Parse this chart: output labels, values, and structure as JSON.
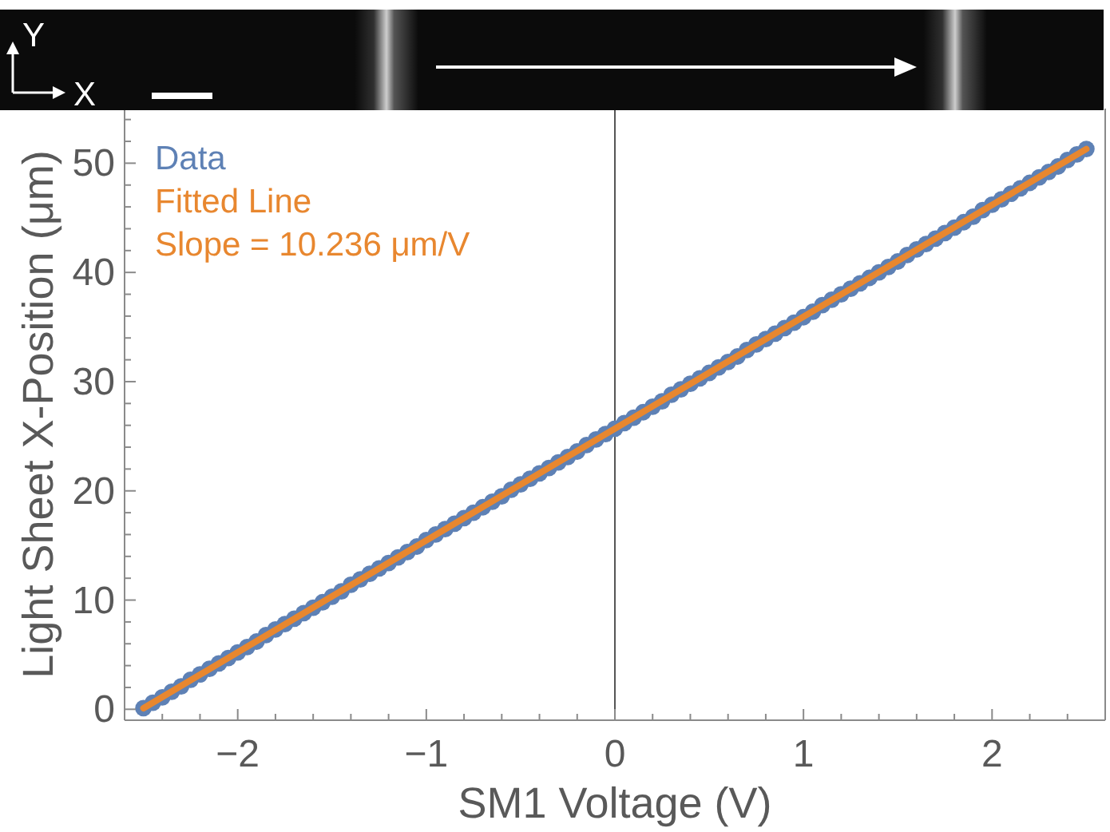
{
  "chart_data": {
    "type": "scatter",
    "xlabel": "SM1 Voltage (V)",
    "ylabel": "Light Sheet X-Position (μm)",
    "annotations": [
      "Slope = 10.236 μm/V",
      "Y",
      "X"
    ],
    "xlim": [
      -2.6,
      2.6
    ],
    "ylim": [
      -1,
      55
    ],
    "xticks": [
      {
        "value": -2.4,
        "label": null
      },
      {
        "value": -2.2,
        "label": null
      },
      {
        "value": -2,
        "label": "−2"
      },
      {
        "value": -1.8,
        "label": null
      },
      {
        "value": -1.6,
        "label": null
      },
      {
        "value": -1.4,
        "label": null
      },
      {
        "value": -1.2,
        "label": null
      },
      {
        "value": -1,
        "label": "−1"
      },
      {
        "value": -0.8,
        "label": null
      },
      {
        "value": -0.6,
        "label": null
      },
      {
        "value": -0.4,
        "label": null
      },
      {
        "value": -0.2,
        "label": null
      },
      0,
      {
        "value": 0.2,
        "label": null
      },
      {
        "value": 0.4,
        "label": null
      },
      {
        "value": 0.6,
        "label": null
      },
      {
        "value": 0.8,
        "label": null
      },
      1,
      {
        "value": 1.2,
        "label": null
      },
      {
        "value": 1.4,
        "label": null
      },
      {
        "value": 1.6,
        "label": null
      },
      {
        "value": 1.8,
        "label": null
      },
      2,
      {
        "value": 2.2,
        "label": null
      },
      {
        "value": 2.4,
        "label": null
      }
    ],
    "yticks": [
      0,
      {
        "value": 2,
        "label": null
      },
      {
        "value": 4,
        "label": null
      },
      {
        "value": 6,
        "label": null
      },
      {
        "value": 8,
        "label": null
      },
      10,
      {
        "value": 12,
        "label": null
      },
      {
        "value": 14,
        "label": null
      },
      {
        "value": 16,
        "label": null
      },
      {
        "value": 18,
        "label": null
      },
      20,
      {
        "value": 22,
        "label": null
      },
      {
        "value": 24,
        "label": null
      },
      {
        "value": 26,
        "label": null
      },
      {
        "value": 28,
        "label": null
      },
      30,
      {
        "value": 32,
        "label": null
      },
      {
        "value": 34,
        "label": null
      },
      {
        "value": 36,
        "label": null
      },
      {
        "value": 38,
        "label": null
      },
      40,
      {
        "value": 42,
        "label": null
      },
      {
        "value": 44,
        "label": null
      },
      {
        "value": 46,
        "label": null
      },
      {
        "value": 48,
        "label": null
      },
      50,
      {
        "value": 52,
        "label": null
      },
      {
        "value": 54,
        "label": null
      }
    ],
    "ref_lines": [
      {
        "axis": "x",
        "value": 0,
        "color": "#555555"
      }
    ],
    "legend": "top left",
    "series": [
      {
        "name": "Data",
        "type": "scatter",
        "color": "#5e81b5",
        "marker": "circle",
        "x": [
          -2.5,
          -2.45,
          -2.4,
          -2.35,
          -2.3,
          -2.25,
          -2.2,
          -2.15,
          -2.1,
          -2.05,
          -2,
          -1.95,
          -1.9,
          -1.85,
          -1.8,
          -1.75,
          -1.7,
          -1.65,
          -1.6,
          -1.55,
          -1.5,
          -1.45,
          -1.4,
          -1.35,
          -1.3,
          -1.25,
          -1.2,
          -1.15,
          -1.1,
          -1.05,
          -1,
          -0.95,
          -0.9,
          -0.85,
          -0.8,
          -0.75,
          -0.7,
          -0.65,
          -0.6,
          -0.55,
          -0.5,
          -0.45,
          -0.4,
          -0.35,
          -0.3,
          -0.25,
          -0.2,
          -0.15,
          -0.1,
          -0.05,
          0,
          0.05,
          0.1,
          0.15,
          0.2,
          0.25,
          0.3,
          0.35,
          0.4,
          0.45,
          0.5,
          0.55,
          0.6,
          0.65,
          0.7,
          0.75,
          0.8,
          0.85,
          0.9,
          0.95,
          1,
          1.05,
          1.1,
          1.15,
          1.2,
          1.25,
          1.3,
          1.35,
          1.4,
          1.45,
          1.5,
          1.55,
          1.6,
          1.65,
          1.7,
          1.75,
          1.8,
          1.85,
          1.9,
          1.95,
          2,
          2.05,
          2.1,
          2.15,
          2.2,
          2.25,
          2.3,
          2.35,
          2.4,
          2.45,
          2.5
        ],
        "values": [
          0.1,
          0.6,
          1.1,
          1.6,
          2.1,
          2.7,
          3.2,
          3.7,
          4.2,
          4.7,
          5.2,
          5.7,
          6.2,
          6.8,
          7.3,
          7.8,
          8.3,
          8.8,
          9.3,
          9.8,
          10.3,
          10.8,
          11.4,
          11.9,
          12.4,
          12.9,
          13.4,
          13.9,
          14.4,
          14.9,
          15.5,
          16.0,
          16.5,
          17.0,
          17.5,
          18.0,
          18.5,
          19.0,
          19.5,
          20.1,
          20.6,
          21.1,
          21.6,
          22.1,
          22.6,
          23.1,
          23.6,
          24.2,
          24.7,
          25.2,
          25.7,
          26.2,
          26.7,
          27.2,
          27.7,
          28.2,
          28.8,
          29.3,
          29.8,
          30.3,
          30.8,
          31.3,
          31.8,
          32.3,
          32.9,
          33.4,
          33.9,
          34.4,
          34.9,
          35.4,
          35.9,
          36.4,
          37.0,
          37.5,
          38.0,
          38.5,
          39.0,
          39.5,
          40.0,
          40.5,
          41.0,
          41.6,
          42.1,
          42.6,
          43.1,
          43.6,
          44.1,
          44.6,
          45.1,
          45.7,
          46.2,
          46.7,
          47.2,
          47.7,
          48.2,
          48.7,
          49.2,
          49.7,
          50.3,
          50.8,
          51.3
        ]
      },
      {
        "name": "Fitted Line",
        "type": "line",
        "color": "#e8872f",
        "marker": "none",
        "x": [
          -2.5,
          2.5
        ],
        "values": [
          0.1,
          51.3
        ]
      }
    ]
  }
}
